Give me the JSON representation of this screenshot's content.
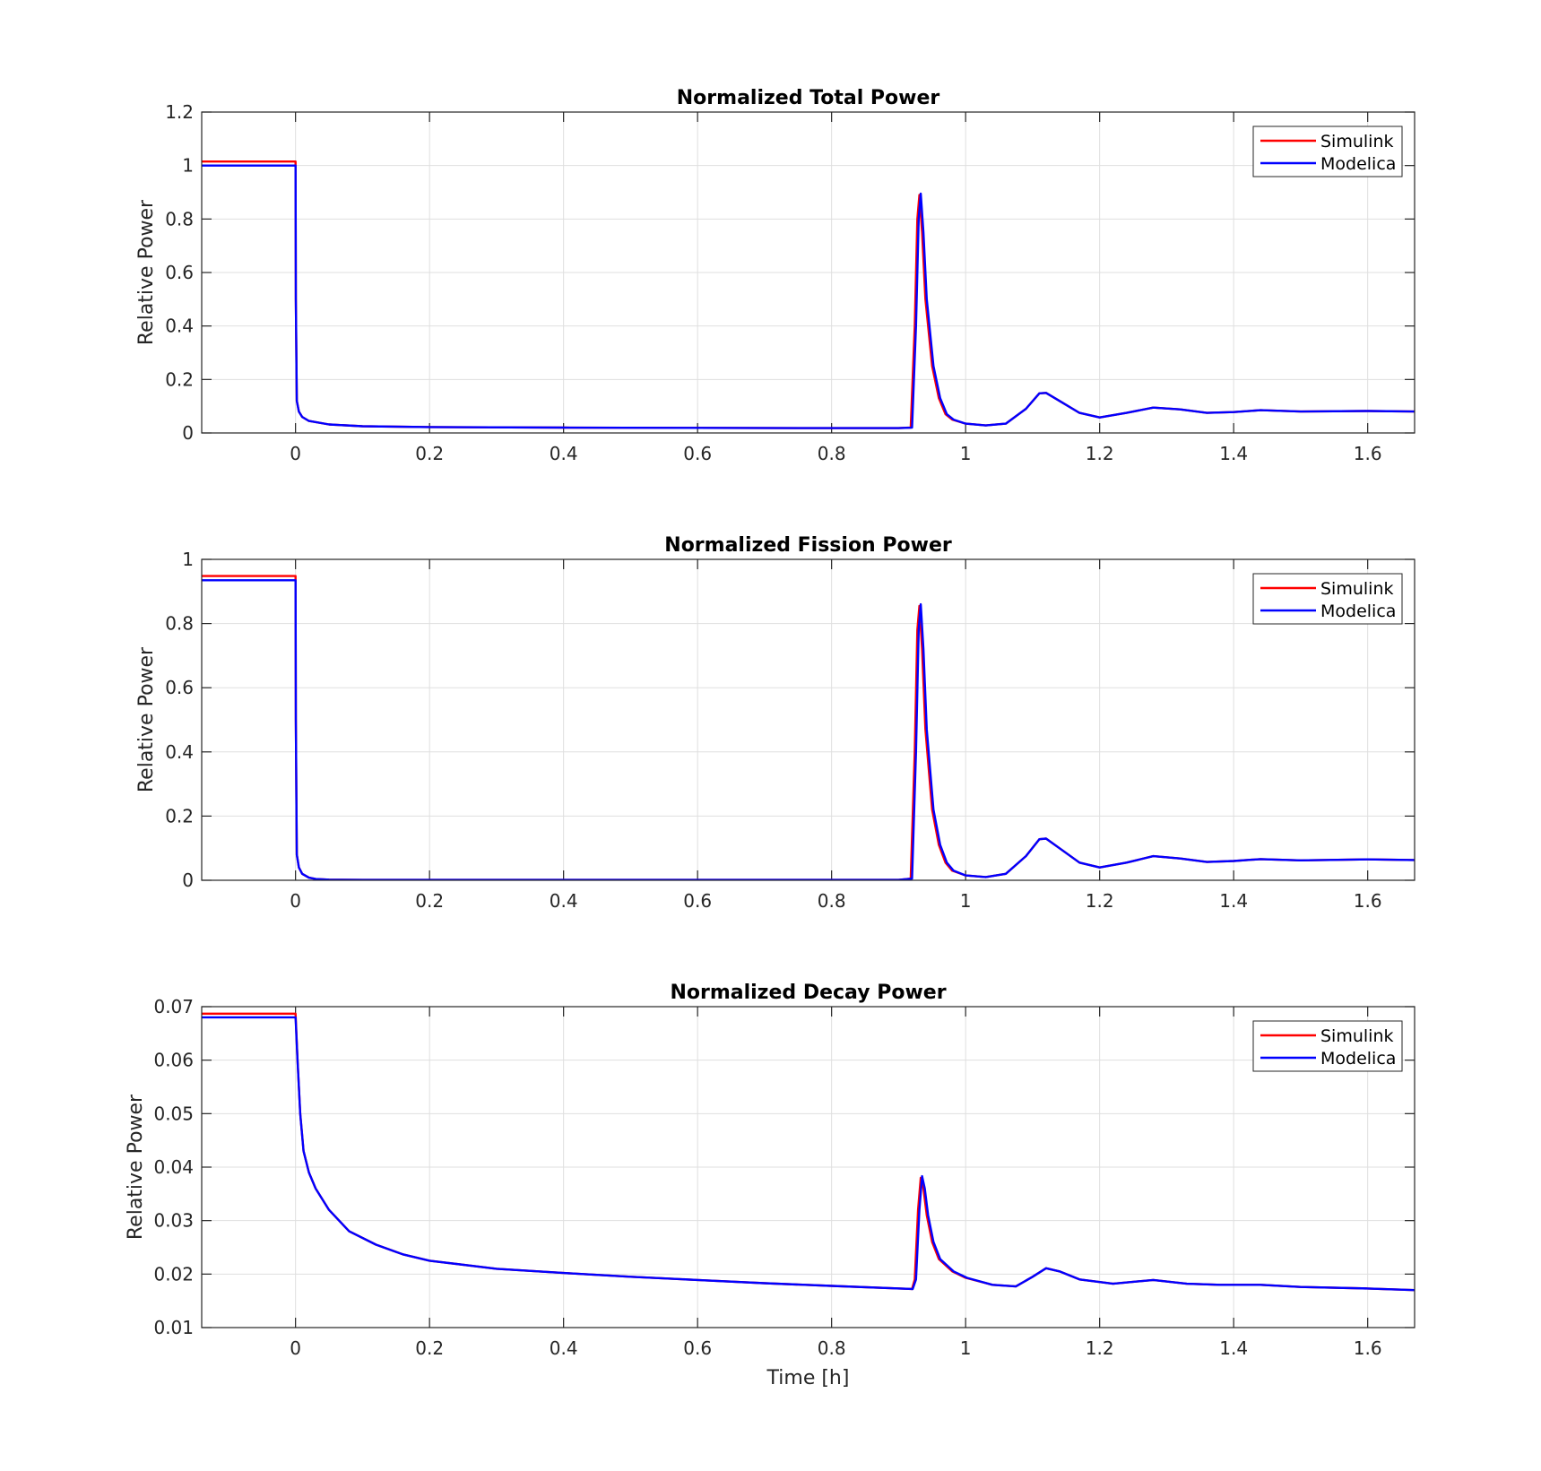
{
  "chart_data": [
    {
      "type": "line",
      "title": "Normalized Total Power",
      "ylabel": "Relative Power",
      "xlabel": "",
      "xlim": [
        -0.14,
        1.67
      ],
      "ylim": [
        0,
        1.2
      ],
      "xticks": [
        0,
        0.2,
        0.4,
        0.6,
        0.8,
        1,
        1.2,
        1.4,
        1.6
      ],
      "xtick_labels": [
        "0",
        "0.2",
        "0.4",
        "0.6",
        "0.8",
        "1",
        "1.2",
        "1.4",
        "1.6"
      ],
      "yticks": [
        0,
        0.2,
        0.4,
        0.6,
        0.8,
        1,
        1.2
      ],
      "ytick_labels": [
        "0",
        "0.2",
        "0.4",
        "0.6",
        "0.8",
        "1",
        "1.2"
      ],
      "grid": true,
      "legend": "top-right",
      "series": [
        {
          "name": "Simulink",
          "color": "#ff0000",
          "x": [
            -0.14,
            0,
            0.0005,
            0.002,
            0.005,
            0.01,
            0.02,
            0.05,
            0.1,
            0.2,
            0.4,
            0.6,
            0.8,
            0.9,
            0.918,
            0.924,
            0.928,
            0.931,
            0.935,
            0.94,
            0.95,
            0.96,
            0.97,
            0.98,
            1.0,
            1.03,
            1.06,
            1.09,
            1.11,
            1.12,
            1.14,
            1.17,
            1.2,
            1.24,
            1.28,
            1.32,
            1.36,
            1.4,
            1.44,
            1.5,
            1.6,
            1.67
          ],
          "y": [
            1.015,
            1.015,
            0.5,
            0.12,
            0.08,
            0.06,
            0.045,
            0.032,
            0.025,
            0.022,
            0.02,
            0.019,
            0.018,
            0.018,
            0.02,
            0.4,
            0.8,
            0.89,
            0.75,
            0.5,
            0.25,
            0.13,
            0.07,
            0.05,
            0.035,
            0.028,
            0.035,
            0.09,
            0.148,
            0.15,
            0.12,
            0.075,
            0.058,
            0.075,
            0.095,
            0.088,
            0.075,
            0.078,
            0.085,
            0.08,
            0.082,
            0.08
          ]
        },
        {
          "name": "Modelica",
          "color": "#0000ff",
          "x": [
            -0.14,
            0,
            0.0005,
            0.002,
            0.005,
            0.01,
            0.02,
            0.05,
            0.1,
            0.2,
            0.4,
            0.6,
            0.8,
            0.9,
            0.92,
            0.926,
            0.93,
            0.933,
            0.937,
            0.942,
            0.952,
            0.962,
            0.972,
            0.982,
            1.0,
            1.03,
            1.06,
            1.09,
            1.11,
            1.12,
            1.14,
            1.17,
            1.2,
            1.24,
            1.28,
            1.32,
            1.36,
            1.4,
            1.44,
            1.5,
            1.6,
            1.67
          ],
          "y": [
            1.0,
            1.0,
            0.5,
            0.12,
            0.08,
            0.06,
            0.045,
            0.032,
            0.025,
            0.022,
            0.02,
            0.019,
            0.018,
            0.018,
            0.02,
            0.4,
            0.8,
            0.895,
            0.75,
            0.5,
            0.25,
            0.13,
            0.07,
            0.05,
            0.035,
            0.028,
            0.035,
            0.09,
            0.148,
            0.15,
            0.12,
            0.075,
            0.058,
            0.075,
            0.095,
            0.088,
            0.075,
            0.078,
            0.085,
            0.08,
            0.082,
            0.08
          ]
        }
      ]
    },
    {
      "type": "line",
      "title": "Normalized Fission Power",
      "ylabel": "Relative Power",
      "xlabel": "",
      "xlim": [
        -0.14,
        1.67
      ],
      "ylim": [
        0,
        1
      ],
      "xticks": [
        0,
        0.2,
        0.4,
        0.6,
        0.8,
        1,
        1.2,
        1.4,
        1.6
      ],
      "xtick_labels": [
        "0",
        "0.2",
        "0.4",
        "0.6",
        "0.8",
        "1",
        "1.2",
        "1.4",
        "1.6"
      ],
      "yticks": [
        0,
        0.2,
        0.4,
        0.6,
        0.8,
        1
      ],
      "ytick_labels": [
        "0",
        "0.2",
        "0.4",
        "0.6",
        "0.8",
        "1"
      ],
      "grid": true,
      "legend": "top-right",
      "series": [
        {
          "name": "Simulink",
          "color": "#ff0000",
          "x": [
            -0.14,
            0,
            0.0005,
            0.002,
            0.005,
            0.01,
            0.02,
            0.03,
            0.05,
            0.1,
            0.5,
            0.9,
            0.918,
            0.924,
            0.928,
            0.931,
            0.935,
            0.94,
            0.95,
            0.96,
            0.97,
            0.98,
            1.0,
            1.03,
            1.06,
            1.09,
            1.11,
            1.12,
            1.14,
            1.17,
            1.2,
            1.24,
            1.28,
            1.32,
            1.36,
            1.4,
            1.44,
            1.5,
            1.6,
            1.67
          ],
          "y": [
            0.948,
            0.948,
            0.5,
            0.08,
            0.04,
            0.02,
            0.008,
            0.004,
            0.002,
            0.001,
            0.001,
            0.001,
            0.005,
            0.4,
            0.78,
            0.855,
            0.72,
            0.47,
            0.22,
            0.11,
            0.055,
            0.03,
            0.015,
            0.01,
            0.02,
            0.075,
            0.128,
            0.13,
            0.1,
            0.055,
            0.04,
            0.055,
            0.075,
            0.068,
            0.057,
            0.06,
            0.066,
            0.062,
            0.065,
            0.063
          ]
        },
        {
          "name": "Modelica",
          "color": "#0000ff",
          "x": [
            -0.14,
            0,
            0.0005,
            0.002,
            0.005,
            0.01,
            0.02,
            0.03,
            0.05,
            0.1,
            0.5,
            0.9,
            0.92,
            0.926,
            0.93,
            0.933,
            0.937,
            0.942,
            0.952,
            0.962,
            0.972,
            0.982,
            1.0,
            1.03,
            1.06,
            1.09,
            1.11,
            1.12,
            1.14,
            1.17,
            1.2,
            1.24,
            1.28,
            1.32,
            1.36,
            1.4,
            1.44,
            1.5,
            1.6,
            1.67
          ],
          "y": [
            0.935,
            0.935,
            0.5,
            0.08,
            0.04,
            0.02,
            0.008,
            0.004,
            0.002,
            0.001,
            0.001,
            0.001,
            0.005,
            0.4,
            0.78,
            0.86,
            0.72,
            0.47,
            0.22,
            0.11,
            0.055,
            0.03,
            0.015,
            0.01,
            0.02,
            0.075,
            0.128,
            0.13,
            0.1,
            0.055,
            0.04,
            0.055,
            0.075,
            0.068,
            0.057,
            0.06,
            0.066,
            0.062,
            0.065,
            0.063
          ]
        }
      ]
    },
    {
      "type": "line",
      "title": "Normalized Decay Power",
      "ylabel": "Relative Power",
      "xlabel": "Time [h]",
      "xlim": [
        -0.14,
        1.67
      ],
      "ylim": [
        0.01,
        0.07
      ],
      "xticks": [
        0,
        0.2,
        0.4,
        0.6,
        0.8,
        1,
        1.2,
        1.4,
        1.6
      ],
      "xtick_labels": [
        "0",
        "0.2",
        "0.4",
        "0.6",
        "0.8",
        "1",
        "1.2",
        "1.4",
        "1.6"
      ],
      "yticks": [
        0.01,
        0.02,
        0.03,
        0.04,
        0.05,
        0.06,
        0.07
      ],
      "ytick_labels": [
        "0.01",
        "0.02",
        "0.03",
        "0.04",
        "0.05",
        "0.06",
        "0.07"
      ],
      "grid": true,
      "legend": "top-right",
      "series": [
        {
          "name": "Simulink",
          "color": "#ff0000",
          "x": [
            -0.14,
            0,
            0.003,
            0.007,
            0.012,
            0.02,
            0.03,
            0.05,
            0.08,
            0.12,
            0.16,
            0.2,
            0.3,
            0.4,
            0.5,
            0.6,
            0.7,
            0.8,
            0.92,
            0.924,
            0.929,
            0.933,
            0.937,
            0.942,
            0.95,
            0.96,
            0.98,
            1.0,
            1.04,
            1.075,
            1.1,
            1.12,
            1.14,
            1.17,
            1.22,
            1.28,
            1.33,
            1.38,
            1.44,
            1.5,
            1.6,
            1.67
          ],
          "y": [
            0.0687,
            0.0687,
            0.06,
            0.05,
            0.043,
            0.039,
            0.036,
            0.032,
            0.028,
            0.0255,
            0.0237,
            0.0225,
            0.021,
            0.0202,
            0.0195,
            0.0189,
            0.0183,
            0.0178,
            0.0172,
            0.019,
            0.032,
            0.038,
            0.036,
            0.031,
            0.026,
            0.0228,
            0.0205,
            0.0193,
            0.018,
            0.0177,
            0.0195,
            0.0211,
            0.0205,
            0.019,
            0.0182,
            0.0189,
            0.0182,
            0.018,
            0.018,
            0.0176,
            0.0173,
            0.017
          ]
        },
        {
          "name": "Modelica",
          "color": "#0000ff",
          "x": [
            -0.14,
            0,
            0.003,
            0.007,
            0.012,
            0.02,
            0.03,
            0.05,
            0.08,
            0.12,
            0.16,
            0.2,
            0.3,
            0.4,
            0.5,
            0.6,
            0.7,
            0.8,
            0.921,
            0.926,
            0.931,
            0.935,
            0.939,
            0.944,
            0.952,
            0.962,
            0.982,
            1.002,
            1.04,
            1.075,
            1.1,
            1.12,
            1.14,
            1.17,
            1.22,
            1.28,
            1.33,
            1.38,
            1.44,
            1.5,
            1.6,
            1.67
          ],
          "y": [
            0.068,
            0.068,
            0.06,
            0.05,
            0.043,
            0.039,
            0.036,
            0.032,
            0.028,
            0.0255,
            0.0237,
            0.0225,
            0.021,
            0.0202,
            0.0195,
            0.0189,
            0.0183,
            0.0178,
            0.0172,
            0.019,
            0.032,
            0.0383,
            0.036,
            0.031,
            0.026,
            0.0228,
            0.0205,
            0.0193,
            0.018,
            0.0177,
            0.0195,
            0.0211,
            0.0205,
            0.019,
            0.0182,
            0.0189,
            0.0182,
            0.018,
            0.018,
            0.0176,
            0.0173,
            0.017
          ]
        }
      ]
    }
  ]
}
